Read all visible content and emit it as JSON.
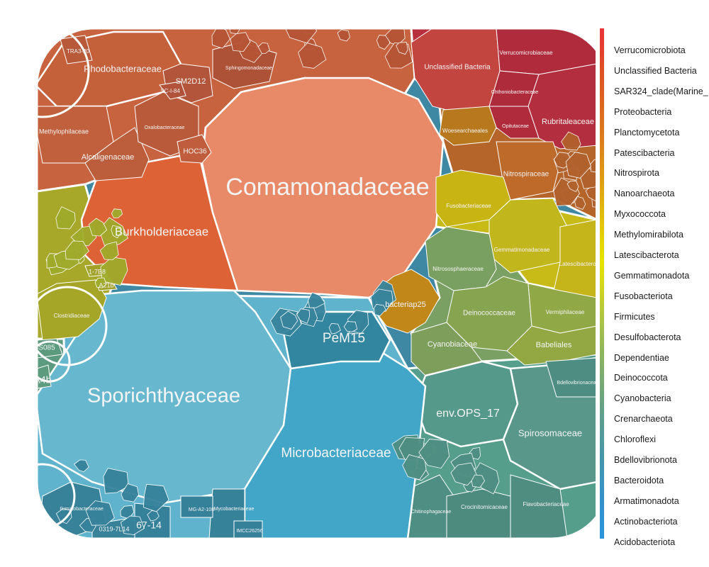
{
  "chart_data": {
    "type": "voronoi-treemap",
    "title": "",
    "legend": {
      "position": "right",
      "style": "gradient color bar",
      "entries": [
        {
          "name": "Verrucomicrobiota",
          "color": "#e8343b"
        },
        {
          "name": "Unclassified Bacteria",
          "color": "#e33f2e"
        },
        {
          "name": "SAR324_clade(Marine_",
          "color": "#df5025"
        },
        {
          "name": "Proteobacteria",
          "color": "#dd5e22"
        },
        {
          "name": "Planctomycetota",
          "color": "#dc6c1f"
        },
        {
          "name": "Patescibacteria",
          "color": "#dc7a1c"
        },
        {
          "name": "Nitrospirota",
          "color": "#dd8a18"
        },
        {
          "name": "Nanoarchaeota",
          "color": "#de9b14"
        },
        {
          "name": "Myxococcota",
          "color": "#e0ad10"
        },
        {
          "name": "Methylomirabilota",
          "color": "#e2c00b"
        },
        {
          "name": "Latescibacterota",
          "color": "#e5d406"
        },
        {
          "name": "Gemmatimonadota",
          "color": "#e8e302"
        },
        {
          "name": "Fusobacteriota",
          "color": "#d4d71a"
        },
        {
          "name": "Firmicutes",
          "color": "#bccb33"
        },
        {
          "name": "Desulfobacterota",
          "color": "#a6c04a"
        },
        {
          "name": "Dependentiae",
          "color": "#93b75a"
        },
        {
          "name": "Deinococcota",
          "color": "#81ae69"
        },
        {
          "name": "Cyanobacteria",
          "color": "#71a778"
        },
        {
          "name": "Crenarchaeota",
          "color": "#62a088"
        },
        {
          "name": "Chloroflexi",
          "color": "#549a98"
        },
        {
          "name": "Bdellovibrionota",
          "color": "#4896a8"
        },
        {
          "name": "Bacteroidota",
          "color": "#3e93b8"
        },
        {
          "name": "Armatimonadota",
          "color": "#3592c7"
        },
        {
          "name": "Actinobacteriota",
          "color": "#2f93d3"
        },
        {
          "name": "Acidobacteriota",
          "color": "#2c94dc"
        }
      ]
    },
    "phyla": [
      {
        "name": "Proteobacteria",
        "color": "#c8633f",
        "cells": [
          {
            "name": "Comamonadaceae",
            "color": "#e88a68",
            "size": "large"
          },
          {
            "name": "Burkholderiaceae",
            "color": "#dd6236",
            "size": "medium"
          },
          {
            "name": "Rhodobacteraceae",
            "color": "#c4603a",
            "size": "medium"
          },
          {
            "name": "Methylophilaceae",
            "color": "#c0603c",
            "size": "small"
          },
          {
            "name": "Alcaligenaceae",
            "color": "#bc5d3b",
            "size": "small"
          },
          {
            "name": "Oxalobacteraceae",
            "color": "#b95a3a",
            "size": "tiny"
          },
          {
            "name": "SM2D12",
            "color": "#b3553a",
            "size": "small"
          },
          {
            "name": "SC-I-84",
            "color": "#b0533a",
            "size": "tiny"
          },
          {
            "name": "HOC36",
            "color": "#c05d3c",
            "size": "small"
          },
          {
            "name": "Sphingomonadaceae",
            "color": "#ad5236",
            "size": "tiny"
          },
          {
            "name": "TRA3-20",
            "color": "#b85a3a",
            "size": "tiny"
          }
        ]
      },
      {
        "name": "Verrucomicrobiota",
        "color": "#b8303d",
        "cells": [
          {
            "name": "Unclassified Bacteria",
            "color": "#c24540",
            "size": "small"
          },
          {
            "name": "Verrucomicrobiaceae",
            "color": "#b02c3d",
            "size": "tiny"
          },
          {
            "name": "Rubritaleaceae",
            "color": "#b32e3e",
            "size": "small"
          },
          {
            "name": "Opitutaceae",
            "color": "#b02c3c",
            "size": "tiny"
          },
          {
            "name": "Chthoniobacteraceae",
            "color": "#ae2b3b",
            "size": "tiny"
          }
        ]
      },
      {
        "name": "Nitrospirota",
        "color": "#b5652a",
        "cells": [
          {
            "name": "Woesearchaeales",
            "color": "#b8781d",
            "size": "tiny"
          },
          {
            "name": "Nitrospiraceae",
            "color": "#bd6a2a",
            "size": "small"
          }
        ]
      },
      {
        "name": "Fusobacteriota",
        "color": "#c9bb17",
        "cells": [
          {
            "name": "Fusobacteriaceae",
            "color": "#c8b514",
            "size": "tiny"
          },
          {
            "name": "Gemmatimonadaceae",
            "color": "#c1b61c",
            "size": "tiny"
          },
          {
            "name": "Latescibacterota",
            "color": "#c5b41a",
            "size": "tiny"
          }
        ]
      },
      {
        "name": "Myxococcota",
        "color": "#bf8a1c",
        "cells": [
          {
            "name": "bacteriap25",
            "color": "#c18719",
            "size": "small"
          }
        ]
      },
      {
        "name": "Cyanobacteria",
        "color": "#7aa163",
        "cells": [
          {
            "name": "Nitrososphaeraceae",
            "color": "#7aa061",
            "size": "tiny"
          },
          {
            "name": "Deinococcaceae",
            "color": "#87a451",
            "size": "small"
          },
          {
            "name": "Vermiphilaceae",
            "color": "#91a847",
            "size": "tiny"
          },
          {
            "name": "Babeliales",
            "color": "#93a843",
            "size": "small"
          },
          {
            "name": "Cyanobiaceae",
            "color": "#7e9f5b",
            "size": "small"
          }
        ]
      },
      {
        "name": "Bacteroidota",
        "color": "#569e8c",
        "cells": [
          {
            "name": "env.OPS_17",
            "color": "#55998a",
            "size": "medium"
          },
          {
            "name": "Spirosomaceae",
            "color": "#58978a",
            "size": "medium"
          },
          {
            "name": "Bdellovibrionaceae",
            "color": "#4e8d81",
            "size": "tiny"
          },
          {
            "name": "Chitinophagaceae",
            "color": "#4f8e82",
            "size": "tiny"
          },
          {
            "name": "Crocinitomicaceae",
            "color": "#4d8b7f",
            "size": "tiny"
          },
          {
            "name": "Flavobacteriaceae",
            "color": "#4f8d80",
            "size": "tiny"
          }
        ]
      },
      {
        "name": "Actinobacteriota",
        "color": "#5fb3cc",
        "cells": [
          {
            "name": "Sporichthyaceae",
            "color": "#67b8cf",
            "size": "large"
          },
          {
            "name": "Microbacteriaceae",
            "color": "#41a6c7",
            "size": "large"
          },
          {
            "name": "PeM15",
            "color": "#3386a0",
            "size": "medium"
          },
          {
            "name": "Ilumatobacteraceae",
            "color": "#378299",
            "size": "tiny"
          },
          {
            "name": "Mycobacteriaceae",
            "color": "#368299",
            "size": "tiny"
          },
          {
            "name": "0319-7L14",
            "color": "#378299",
            "size": "tiny"
          },
          {
            "name": "67-14",
            "color": "#35819a",
            "size": "small"
          },
          {
            "name": "MG-A2-108",
            "color": "#35819a",
            "size": "tiny"
          },
          {
            "name": "IMCC26256",
            "color": "#35819a",
            "size": "tiny"
          }
        ]
      },
      {
        "name": "Firmicutes",
        "color": "#a7a82a",
        "cells": [
          {
            "name": "Clostridiaceae",
            "color": "#a5a628",
            "size": "tiny"
          },
          {
            "name": "A21b",
            "color": "#a2a22a",
            "size": "tiny"
          },
          {
            "name": "1-7B8",
            "color": "#a2a22a",
            "size": "tiny"
          }
        ]
      },
      {
        "name": "Chloroflexi",
        "color": "#5c9b7f",
        "cells": [
          {
            "name": "S085",
            "color": "#5c9a7d",
            "size": "tiny"
          },
          {
            "name": "A4b",
            "color": "#5d9b7e",
            "size": "small"
          }
        ]
      }
    ]
  }
}
